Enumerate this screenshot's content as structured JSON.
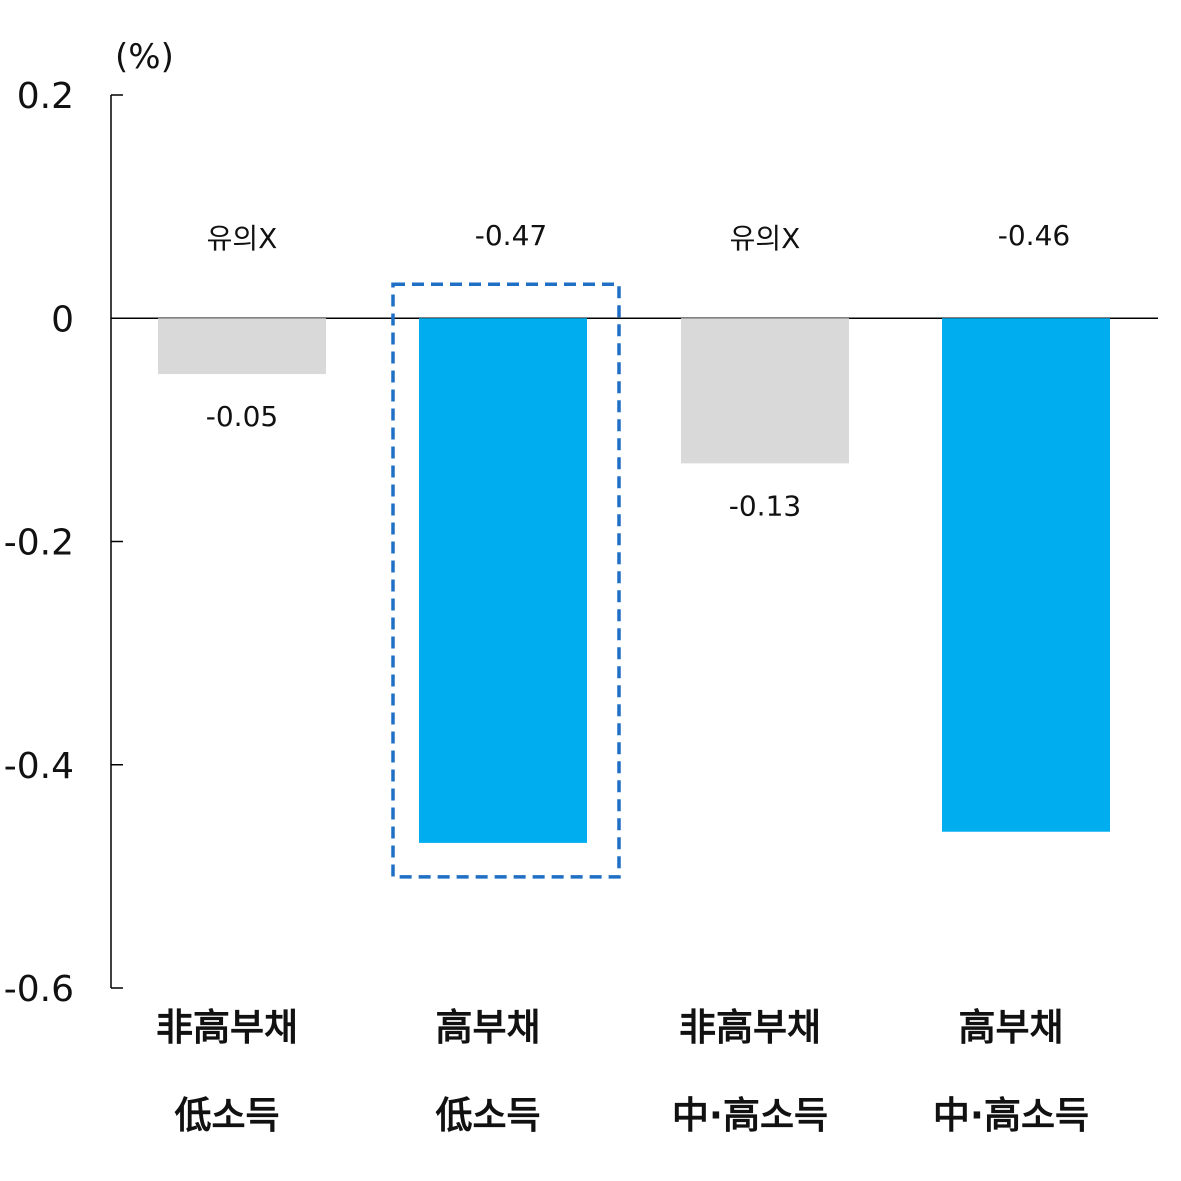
{
  "chart_data": {
    "type": "bar",
    "y_unit": "(%)",
    "ylim": [
      -0.6,
      0.2
    ],
    "yticks": [
      0.2,
      0,
      -0.2,
      -0.4,
      -0.6
    ],
    "ytick_labels": [
      "0.2",
      "0",
      "-0.2",
      "-0.4",
      "-0.6"
    ],
    "categories": [
      [
        "非高부채",
        "低소득"
      ],
      [
        "高부채",
        "低소득"
      ],
      [
        "非高부채",
        "中·高소득"
      ],
      [
        "高부채",
        "中·高소득"
      ]
    ],
    "values": [
      -0.05,
      -0.47,
      -0.13,
      -0.46
    ],
    "value_labels": [
      "-0.05",
      "-0.47",
      "-0.13",
      "-0.46"
    ],
    "significance_notes": [
      "유의X",
      "",
      "유의X",
      ""
    ],
    "significant": [
      false,
      true,
      false,
      true
    ],
    "highlighted_index": 1,
    "grid": false,
    "colors": {
      "significant": "#00AEEF",
      "not_significant": "#D9D9D9",
      "highlight_border": "#1F6FC5",
      "axis": "#000000"
    }
  }
}
